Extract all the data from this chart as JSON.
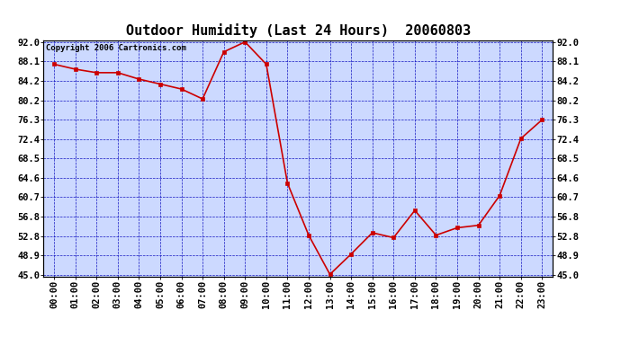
{
  "title": "Outdoor Humidity (Last 24 Hours)  20060803",
  "copyright": "Copyright 2006 Cartronics.com",
  "x_labels": [
    "00:00",
    "01:00",
    "02:00",
    "03:00",
    "04:00",
    "05:00",
    "06:00",
    "07:00",
    "08:00",
    "09:00",
    "10:00",
    "11:00",
    "12:00",
    "13:00",
    "14:00",
    "15:00",
    "16:00",
    "17:00",
    "18:00",
    "19:00",
    "20:00",
    "21:00",
    "22:00",
    "23:00"
  ],
  "y_values": [
    87.5,
    86.5,
    85.8,
    85.8,
    84.5,
    83.5,
    82.5,
    80.5,
    90.0,
    92.0,
    87.5,
    63.5,
    53.0,
    45.1,
    49.2,
    53.5,
    52.5,
    58.0,
    53.0,
    54.5,
    55.0,
    61.0,
    72.5,
    76.3
  ],
  "line_color": "#cc0000",
  "marker_color": "#cc0000",
  "bg_color": "#ccd9ff",
  "fig_bg": "#ffffff",
  "grid_color": "#0000bb",
  "title_color": "#000000",
  "y_min": 45.0,
  "y_max": 92.0,
  "y_ticks": [
    45.0,
    48.9,
    52.8,
    56.8,
    60.7,
    64.6,
    68.5,
    72.4,
    76.3,
    80.2,
    84.2,
    88.1,
    92.0
  ],
  "title_fontsize": 11,
  "tick_fontsize": 7.5,
  "copyright_fontsize": 6.5
}
